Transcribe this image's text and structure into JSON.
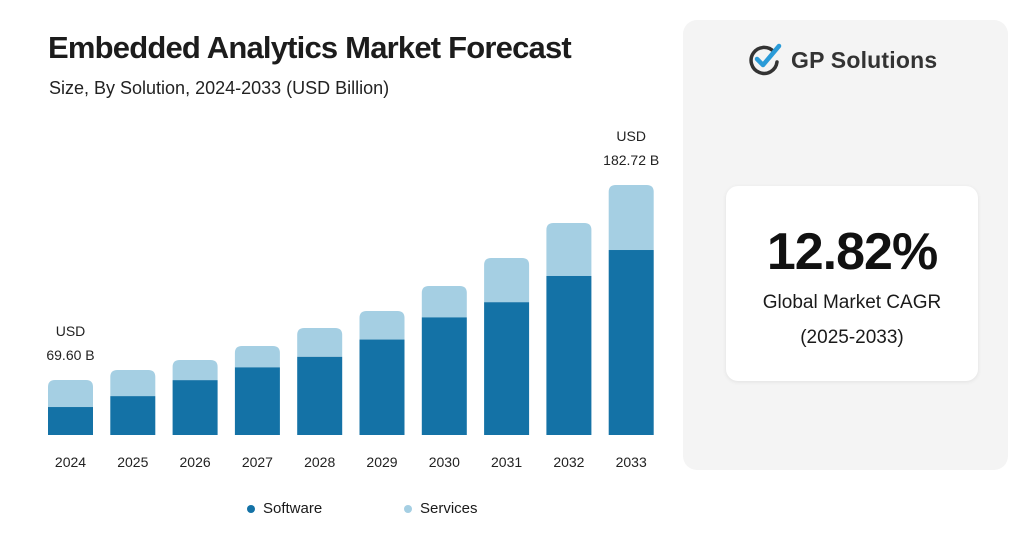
{
  "chart_data": {
    "type": "bar",
    "stacked": true,
    "title": "Embedded Analytics Market Forecast",
    "subtitle": "Size, By Solution, 2024-2033 (USD Billion)",
    "categories": [
      "2024",
      "2025",
      "2026",
      "2027",
      "2028",
      "2029",
      "2030",
      "2031",
      "2032",
      "2033"
    ],
    "series": [
      {
        "name": "Software",
        "color": "#1472a6",
        "values": [
          35.4,
          45.1,
          59.4,
          67.9,
          72.9,
          84.4,
          98.0,
          105.3,
          120.5,
          135.2
        ]
      },
      {
        "name": "Services",
        "color": "#a5cfe3",
        "values": [
          34.2,
          30.3,
          21.8,
          21.4,
          26.9,
          25.2,
          26.1,
          35.1,
          40.2,
          47.5
        ]
      }
    ],
    "annotations": [
      {
        "category": "2024",
        "line1": "USD",
        "line2": "69.60 B"
      },
      {
        "category": "2033",
        "line1": "USD",
        "line2": "182.72 B"
      }
    ],
    "grid": false,
    "legend": "bottom-center"
  },
  "sidebar": {
    "brand": "GP Solutions",
    "cagr_value": "12.82%",
    "cagr_label_1": "Global Market CAGR",
    "cagr_label_2": "(2025-2033)",
    "check_color": "#2a9bd8"
  }
}
